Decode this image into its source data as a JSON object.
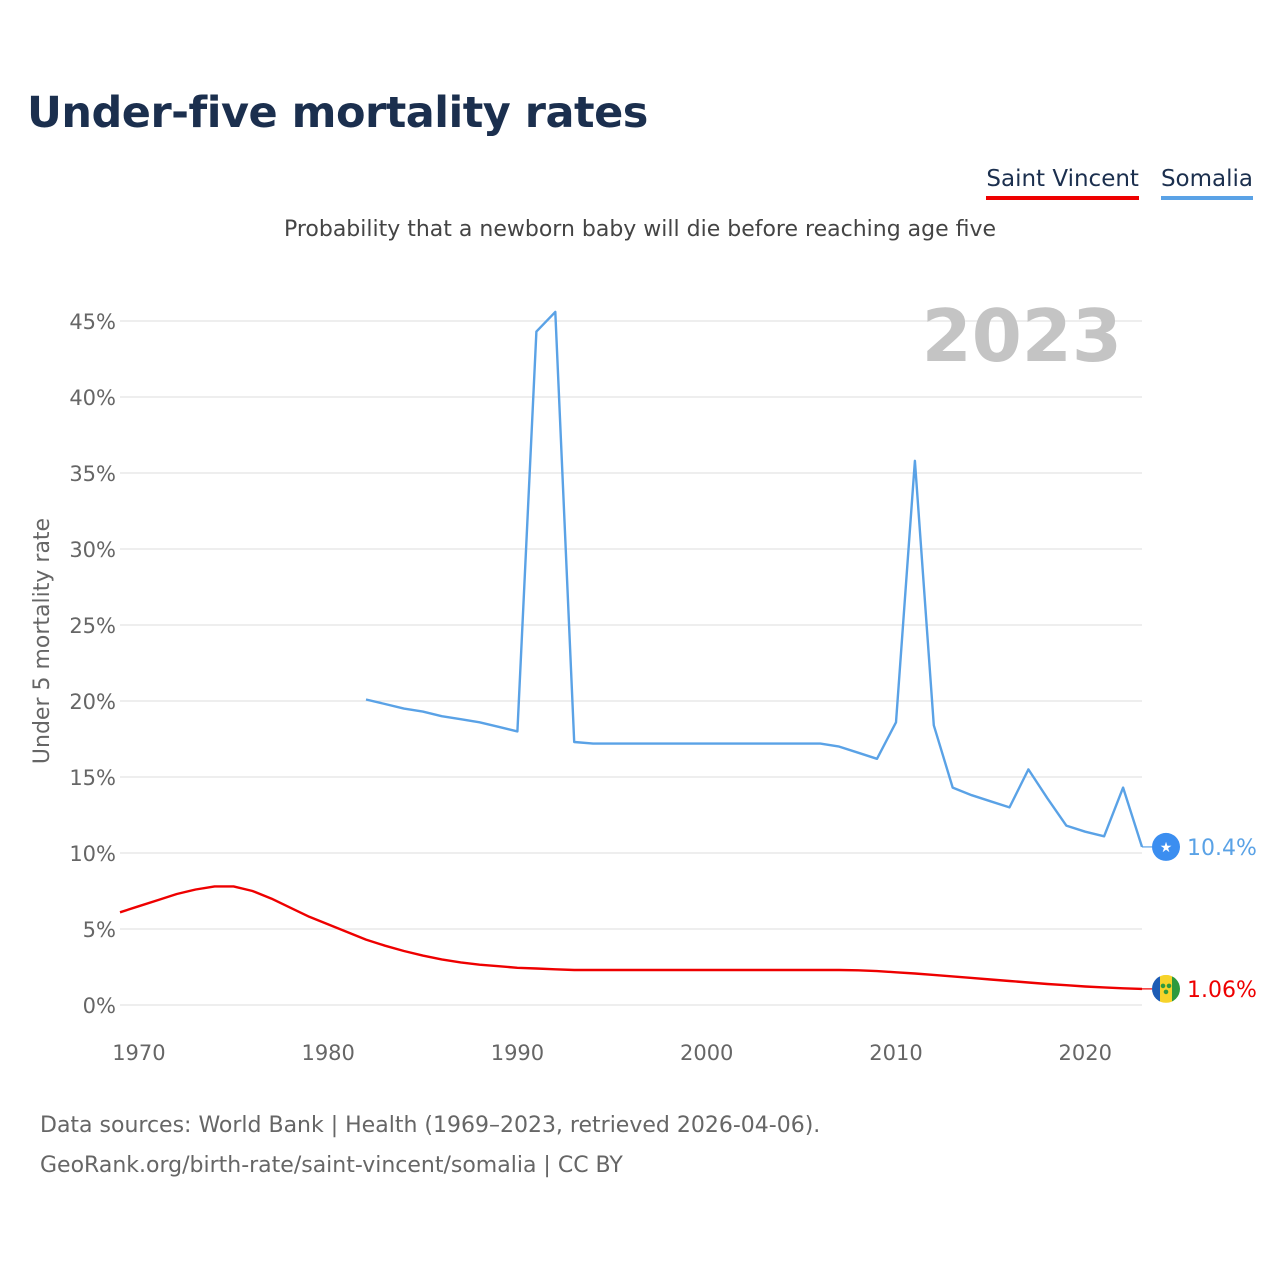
{
  "header": {
    "title": "Under-five mortality rates",
    "subtitle": "Probability that a newborn baby will die before reaching age five"
  },
  "year_label": "2023",
  "footer": {
    "line1": "Data sources: World Bank | Health (1969–2023, retrieved 2026-04-06).",
    "line2": "GeoRank.org/birth-rate/saint-vincent/somalia | CC BY"
  },
  "colors": {
    "saint_vincent": "#ee0000",
    "somalia": "#5aa2e6",
    "flag_somalia": "#3b8ef0"
  },
  "chart_data": {
    "type": "line",
    "title": "Under-five mortality rates",
    "subtitle": "Probability that a newborn baby will die before reaching age five",
    "xlabel": "",
    "ylabel": "Under 5 mortality rate",
    "xlim": [
      1969,
      2023
    ],
    "ylim": [
      0,
      45
    ],
    "x_ticks": [
      1970,
      1980,
      1990,
      2000,
      2010,
      2020
    ],
    "y_ticks": [
      0,
      5,
      10,
      15,
      20,
      25,
      30,
      35,
      40,
      45
    ],
    "y_tick_labels": [
      "0%",
      "5%",
      "10%",
      "15%",
      "20%",
      "25%",
      "30%",
      "35%",
      "40%",
      "45%"
    ],
    "series": [
      {
        "name": "Saint Vincent",
        "color": "#ee0000",
        "end_label": "1.06%",
        "icon": "saint-vincent-flag-icon",
        "points": [
          [
            1969,
            6.1
          ],
          [
            1970,
            6.5
          ],
          [
            1971,
            6.9
          ],
          [
            1972,
            7.3
          ],
          [
            1973,
            7.6
          ],
          [
            1974,
            7.8
          ],
          [
            1975,
            7.8
          ],
          [
            1976,
            7.5
          ],
          [
            1977,
            7.0
          ],
          [
            1978,
            6.4
          ],
          [
            1979,
            5.8
          ],
          [
            1980,
            5.3
          ],
          [
            1981,
            4.8
          ],
          [
            1982,
            4.3
          ],
          [
            1983,
            3.9
          ],
          [
            1984,
            3.55
          ],
          [
            1985,
            3.25
          ],
          [
            1986,
            3.0
          ],
          [
            1987,
            2.8
          ],
          [
            1988,
            2.65
          ],
          [
            1989,
            2.55
          ],
          [
            1990,
            2.45
          ],
          [
            1991,
            2.4
          ],
          [
            1992,
            2.35
          ],
          [
            1993,
            2.3
          ],
          [
            1994,
            2.3
          ],
          [
            1995,
            2.3
          ],
          [
            1996,
            2.3
          ],
          [
            1997,
            2.3
          ],
          [
            1998,
            2.3
          ],
          [
            1999,
            2.3
          ],
          [
            2000,
            2.3
          ],
          [
            2001,
            2.3
          ],
          [
            2002,
            2.3
          ],
          [
            2003,
            2.3
          ],
          [
            2004,
            2.3
          ],
          [
            2005,
            2.3
          ],
          [
            2006,
            2.3
          ],
          [
            2007,
            2.3
          ],
          [
            2008,
            2.28
          ],
          [
            2009,
            2.23
          ],
          [
            2010,
            2.15
          ],
          [
            2011,
            2.07
          ],
          [
            2012,
            1.98
          ],
          [
            2013,
            1.88
          ],
          [
            2014,
            1.78
          ],
          [
            2015,
            1.68
          ],
          [
            2016,
            1.58
          ],
          [
            2017,
            1.48
          ],
          [
            2018,
            1.38
          ],
          [
            2019,
            1.3
          ],
          [
            2020,
            1.22
          ],
          [
            2021,
            1.16
          ],
          [
            2022,
            1.1
          ],
          [
            2023,
            1.06
          ]
        ]
      },
      {
        "name": "Somalia",
        "color": "#5aa2e6",
        "end_label": "10.4%",
        "icon": "somalia-flag-icon",
        "points": [
          [
            1982,
            20.1
          ],
          [
            1983,
            19.8
          ],
          [
            1984,
            19.5
          ],
          [
            1985,
            19.3
          ],
          [
            1986,
            19.0
          ],
          [
            1987,
            18.8
          ],
          [
            1988,
            18.6
          ],
          [
            1989,
            18.3
          ],
          [
            1990,
            18.0
          ],
          [
            1991,
            44.3
          ],
          [
            1992,
            45.6
          ],
          [
            1993,
            17.3
          ],
          [
            1994,
            17.2
          ],
          [
            1995,
            17.2
          ],
          [
            1996,
            17.2
          ],
          [
            1997,
            17.2
          ],
          [
            1998,
            17.2
          ],
          [
            1999,
            17.2
          ],
          [
            2000,
            17.2
          ],
          [
            2001,
            17.2
          ],
          [
            2002,
            17.2
          ],
          [
            2003,
            17.2
          ],
          [
            2004,
            17.2
          ],
          [
            2005,
            17.2
          ],
          [
            2006,
            17.2
          ],
          [
            2007,
            17.0
          ],
          [
            2008,
            16.6
          ],
          [
            2009,
            16.2
          ],
          [
            2010,
            18.6
          ],
          [
            2011,
            35.8
          ],
          [
            2012,
            18.4
          ],
          [
            2013,
            14.3
          ],
          [
            2014,
            13.8
          ],
          [
            2015,
            13.4
          ],
          [
            2016,
            13.0
          ],
          [
            2017,
            15.5
          ],
          [
            2018,
            13.6
          ],
          [
            2019,
            11.8
          ],
          [
            2020,
            11.4
          ],
          [
            2021,
            11.1
          ],
          [
            2022,
            14.3
          ],
          [
            2023,
            10.4
          ]
        ]
      }
    ],
    "legend": [
      "Saint Vincent",
      "Somalia"
    ],
    "legend_position": "top-right",
    "grid": true
  }
}
